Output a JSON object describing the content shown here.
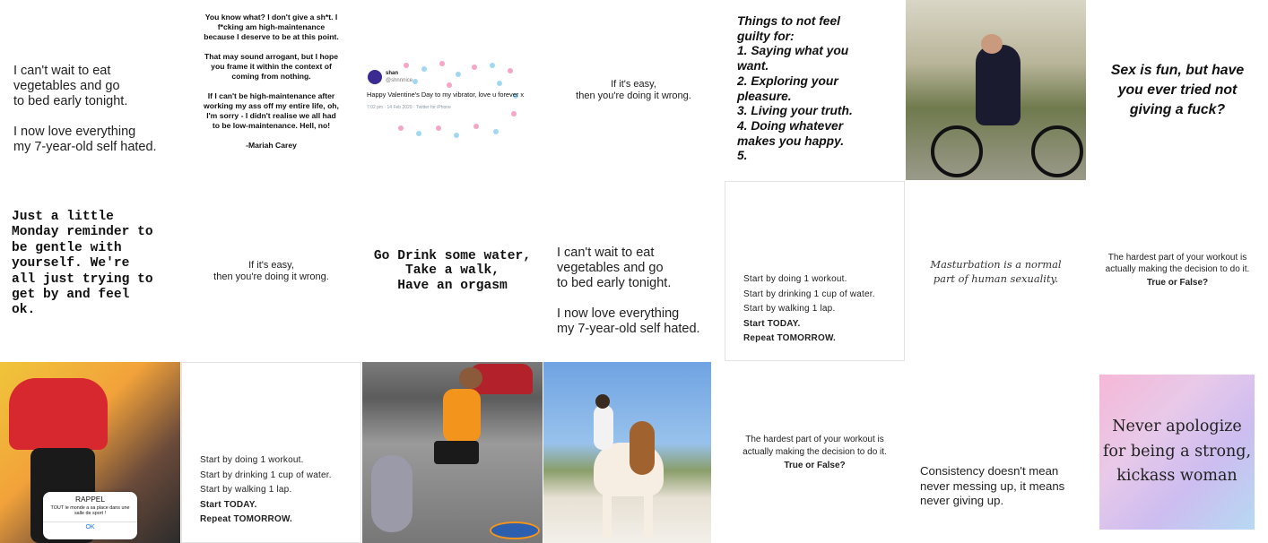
{
  "grid": {
    "t1": {
      "text": "I can't wait to eat\nvegetables and go\nto bed early tonight.\n\nI now love everything\nmy 7-year-old self hated."
    },
    "t2": {
      "text": "You know what? I don't give a sh*t. I f*cking am high-maintenance because I deserve to be at this point.\n\nThat may sound arrogant, but I hope you frame it within the context of coming from nothing.\n\nIf I can't be high-maintenance after working my ass off my entire life, oh, I'm sorry - I didn't realise we all had to be low-maintenance. Hell, no!\n\n-Mariah Carey"
    },
    "t3": {
      "name": "shan",
      "handle": "@shnnnice",
      "tweet": "Happy Valentine's Day to my vibrator, love u forever x",
      "meta": "7:02 pm · 14 Feb 2020 · Twitter for iPhone"
    },
    "t4": {
      "text": "If it's easy,\nthen you're doing it wrong."
    },
    "t5": {
      "text": "Things to not feel\nguilty for:\n1. Saying what you\nwant.\n2. Exploring your\npleasure.\n3. Living your truth.\n4. Doing whatever\nmakes you happy.\n5."
    },
    "t6": {
      "alt": "cyclist-photo"
    },
    "t7": {
      "text": "Sex is fun, but have\nyou ever tried not\ngiving a fuck?"
    },
    "t8": {
      "text": "Just a little\nMonday reminder to\nbe gentle with\nyourself. We're\nall just trying to\nget by and feel\nok."
    },
    "t9": {
      "text": "If it's easy,\nthen you're doing it wrong."
    },
    "t10": {
      "text": "Go Drink some water,\nTake a walk,\nHave an orgasm"
    },
    "t11": {
      "text": "I can't wait to eat\nvegetables and go\nto bed early tonight.\n\nI now love everything\nmy 7-year-old self hated."
    },
    "t12": {
      "lines": [
        "Start by doing 1 workout.",
        "Start by drinking 1 cup of water.",
        "Start by walking 1 lap.",
        "Start TODAY.",
        "Repeat TOMORROW."
      ]
    },
    "t13": {
      "text": "Masturbation is a normal\npart of human sexuality."
    },
    "t14": {
      "text": "The hardest part of your workout is\nactually making the decision to do it.",
      "question": "True or False?"
    },
    "t15": {
      "alert_title": "RAPPEL",
      "alert_body": "TOUT le monde a sa place dans une salle de sport !",
      "alert_ok": "OK"
    },
    "t16": {
      "lines": [
        "Start by doing 1 workout.",
        "Start by drinking 1 cup of water.",
        "Start by walking 1 lap.",
        "Start TODAY.",
        "Repeat TOMORROW."
      ]
    },
    "t17": {
      "alt": "man-running-with-dog-photo"
    },
    "t18": {
      "alt": "woman-on-horse-photo"
    },
    "t19": {
      "text": "The hardest part of your workout is\nactually making the decision to do it.",
      "question": "True or False?"
    },
    "t20": {
      "text": "Consistency doesn't mean\nnever messing up, it means\nnever giving up."
    },
    "t21": {
      "text": "Never apologize\nfor being a strong,\nkickass woman"
    }
  }
}
